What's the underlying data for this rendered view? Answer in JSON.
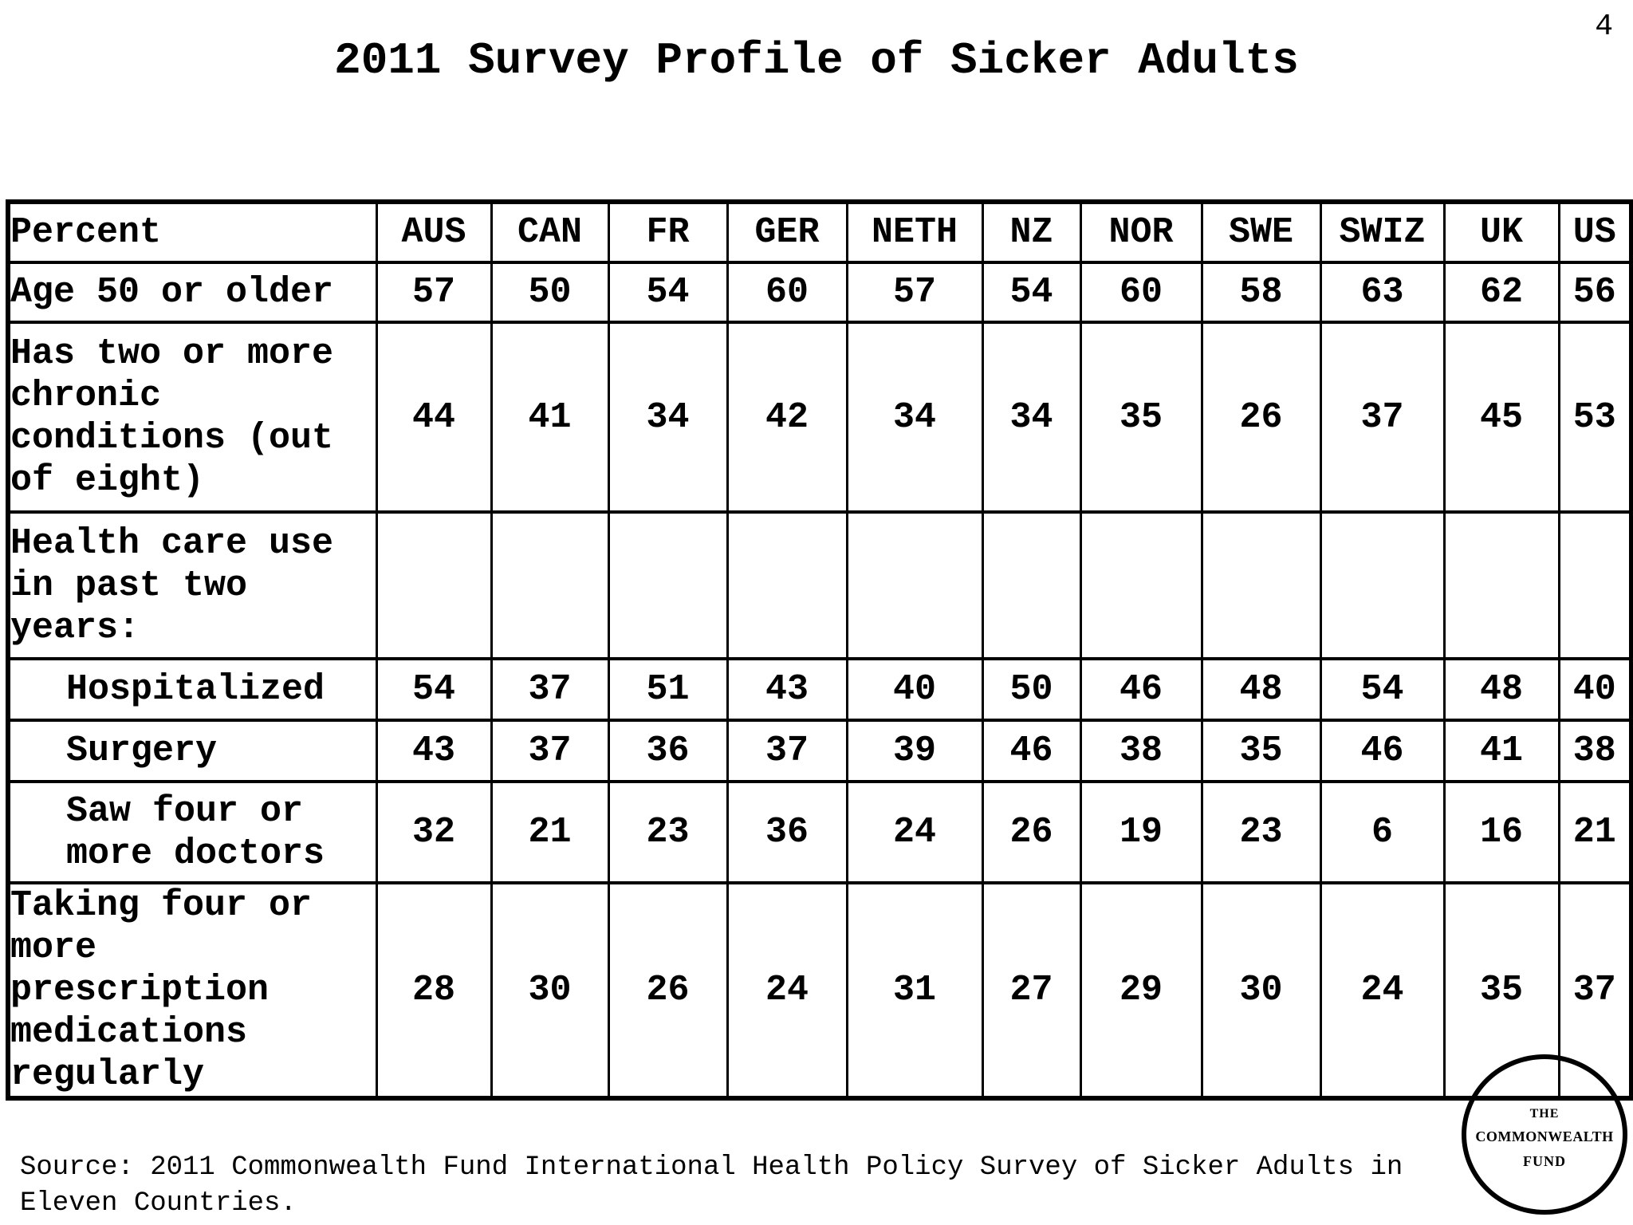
{
  "slide": {
    "title": "2011 Survey Profile of Sicker Adults",
    "page_number": "4",
    "source": "Source: 2011 Commonwealth Fund International Health Policy Survey of Sicker Adults in Eleven Countries."
  },
  "table": {
    "columns": [
      "Percent",
      "AUS",
      "CAN",
      "FR",
      "GER",
      "NETH",
      "NZ",
      "NOR",
      "SWE",
      "SWIZ",
      "UK",
      "US"
    ],
    "rows": [
      {
        "label": "Age 50 or older",
        "indent": false,
        "values": [
          "57",
          "50",
          "54",
          "60",
          "57",
          "54",
          "60",
          "58",
          "63",
          "62",
          "56"
        ]
      },
      {
        "label": "Has two or more chronic conditions (out of eight)",
        "indent": false,
        "values": [
          "44",
          "41",
          "34",
          "42",
          "34",
          "34",
          "35",
          "26",
          "37",
          "45",
          "53"
        ]
      },
      {
        "label": "Health care use in past two years:",
        "indent": false,
        "values": [
          "",
          "",
          "",
          "",
          "",
          "",
          "",
          "",
          "",
          "",
          ""
        ]
      },
      {
        "label": "Hospitalized",
        "indent": true,
        "values": [
          "54",
          "37",
          "51",
          "43",
          "40",
          "50",
          "46",
          "48",
          "54",
          "48",
          "40"
        ]
      },
      {
        "label": "Surgery",
        "indent": true,
        "values": [
          "43",
          "37",
          "36",
          "37",
          "39",
          "46",
          "38",
          "35",
          "46",
          "41",
          "38"
        ]
      },
      {
        "label": "Saw four or more doctors",
        "indent": true,
        "values": [
          "32",
          "21",
          "23",
          "36",
          "24",
          "26",
          "19",
          "23",
          "6",
          "16",
          "21"
        ]
      },
      {
        "label": "Taking four or more prescription medications regularly",
        "indent": false,
        "values": [
          "28",
          "30",
          "26",
          "24",
          "31",
          "27",
          "29",
          "30",
          "24",
          "35",
          "37"
        ]
      }
    ]
  },
  "logo": {
    "line1": "THE",
    "line2": "COMMONWEALTH",
    "line3": "FUND"
  },
  "colors": {
    "text": "#000000",
    "background": "#ffffff"
  },
  "chart_data": {
    "type": "table",
    "title": "2011 Survey Profile of Sicker Adults",
    "unit": "percent",
    "columns": [
      "AUS",
      "CAN",
      "FR",
      "GER",
      "NETH",
      "NZ",
      "NOR",
      "SWE",
      "SWIZ",
      "UK",
      "US"
    ],
    "rows": [
      {
        "label": "Age 50 or older",
        "values": [
          57,
          50,
          54,
          60,
          57,
          54,
          60,
          58,
          63,
          62,
          56
        ]
      },
      {
        "label": "Has two or more chronic conditions (out of eight)",
        "values": [
          44,
          41,
          34,
          42,
          34,
          34,
          35,
          26,
          37,
          45,
          53
        ]
      },
      {
        "label": "Health care use in past two years: Hospitalized",
        "values": [
          54,
          37,
          51,
          43,
          40,
          50,
          46,
          48,
          54,
          48,
          40
        ]
      },
      {
        "label": "Health care use in past two years: Surgery",
        "values": [
          43,
          37,
          36,
          37,
          39,
          46,
          38,
          35,
          46,
          41,
          38
        ]
      },
      {
        "label": "Health care use in past two years: Saw four or more doctors",
        "values": [
          32,
          21,
          23,
          36,
          24,
          26,
          19,
          23,
          6,
          16,
          21
        ]
      },
      {
        "label": "Taking four or more prescription medications regularly",
        "values": [
          28,
          30,
          26,
          24,
          31,
          27,
          29,
          30,
          24,
          35,
          37
        ]
      }
    ]
  }
}
